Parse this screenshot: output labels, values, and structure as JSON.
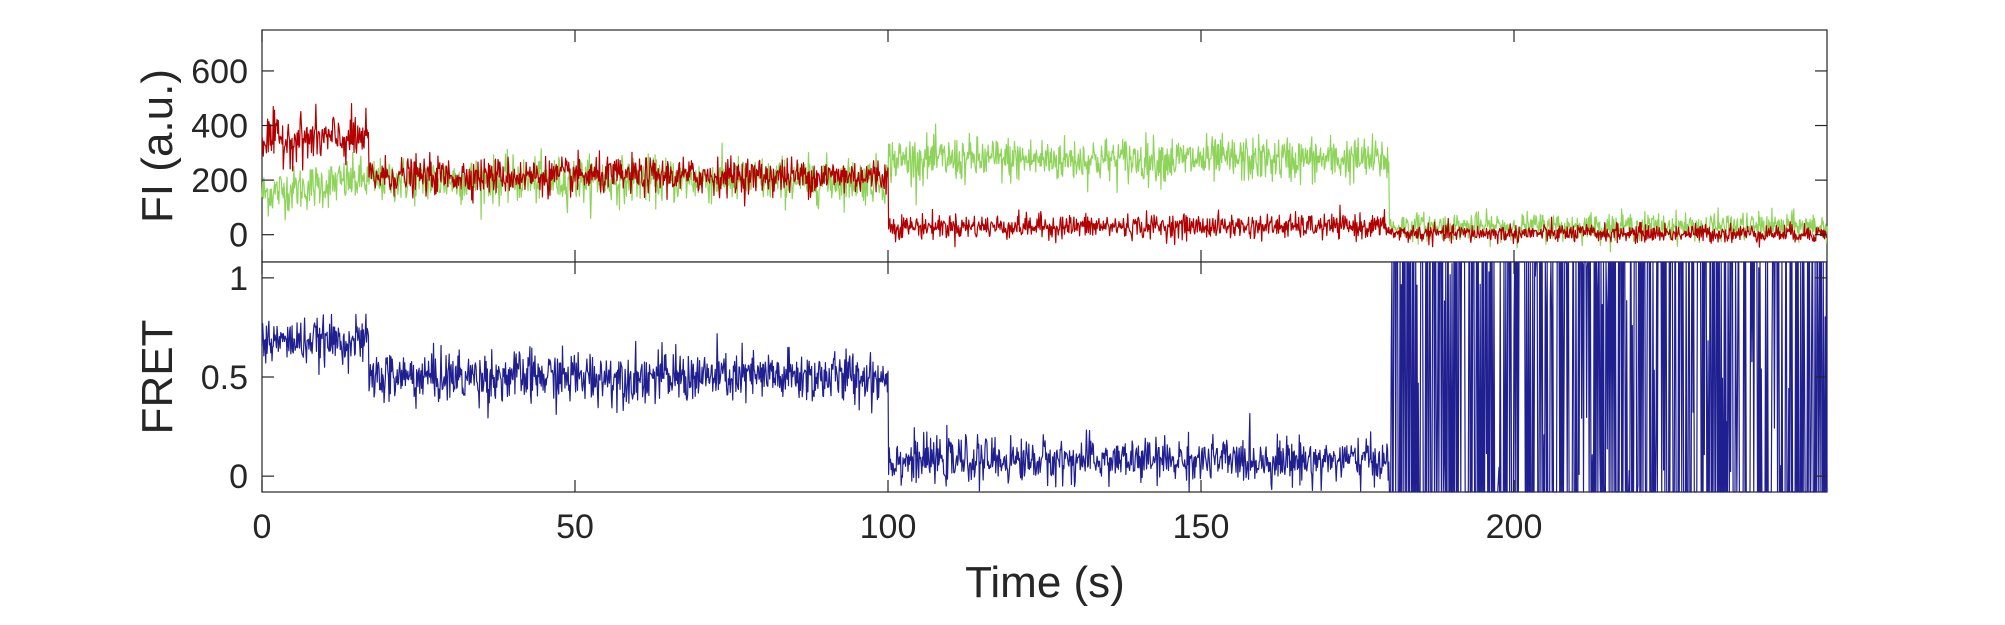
{
  "chart_data": [
    {
      "type": "line",
      "ylabel": "FI (a.u.)",
      "xlabel": "",
      "xlim": [
        0,
        250
      ],
      "ylim": [
        -100,
        750
      ],
      "yticks": [
        0,
        200,
        400,
        600
      ],
      "ytick_labels": [
        "0",
        "200",
        "400",
        "600"
      ],
      "grid": false,
      "series": [
        {
          "color": "#8fd45a",
          "segments": [
            {
              "x0": 0,
              "x1": 100,
              "mean": 200,
              "noise": 75,
              "start_mean": 150
            },
            {
              "x0": 100,
              "x1": 180,
              "mean": 275,
              "noise": 75
            },
            {
              "x0": 180,
              "x1": 250,
              "mean": 30,
              "noise": 45
            }
          ]
        },
        {
          "color": "#b20000",
          "segments": [
            {
              "x0": 0,
              "x1": 17,
              "mean": 350,
              "noise": 80
            },
            {
              "x0": 17,
              "x1": 100,
              "mean": 215,
              "noise": 60
            },
            {
              "x0": 100,
              "x1": 180,
              "mean": 30,
              "noise": 40
            },
            {
              "x0": 180,
              "x1": 250,
              "mean": 5,
              "noise": 30
            }
          ]
        }
      ]
    },
    {
      "type": "line",
      "ylabel": "FRET",
      "xlabel": "Time (s)",
      "xlim": [
        0,
        250
      ],
      "ylim": [
        -0.08,
        1.08
      ],
      "yticks": [
        0,
        0.5,
        1
      ],
      "ytick_labels": [
        "0",
        "0.5",
        "1"
      ],
      "xticks": [
        0,
        50,
        100,
        150,
        200
      ],
      "xtick_labels": [
        "0",
        "50",
        "100",
        "150",
        "200"
      ],
      "grid": false,
      "series": [
        {
          "color": "#1f1f8f",
          "segments": [
            {
              "x0": 0,
              "x1": 17,
              "mean": 0.68,
              "noise": 0.1
            },
            {
              "x0": 17,
              "x1": 100,
              "mean": 0.5,
              "noise": 0.12
            },
            {
              "x0": 100,
              "x1": 180,
              "mean": 0.08,
              "noise": 0.1
            },
            {
              "x0": 180,
              "x1": 250,
              "mean": 0.5,
              "noise": 0.9,
              "random_binary": true
            }
          ]
        }
      ]
    }
  ]
}
